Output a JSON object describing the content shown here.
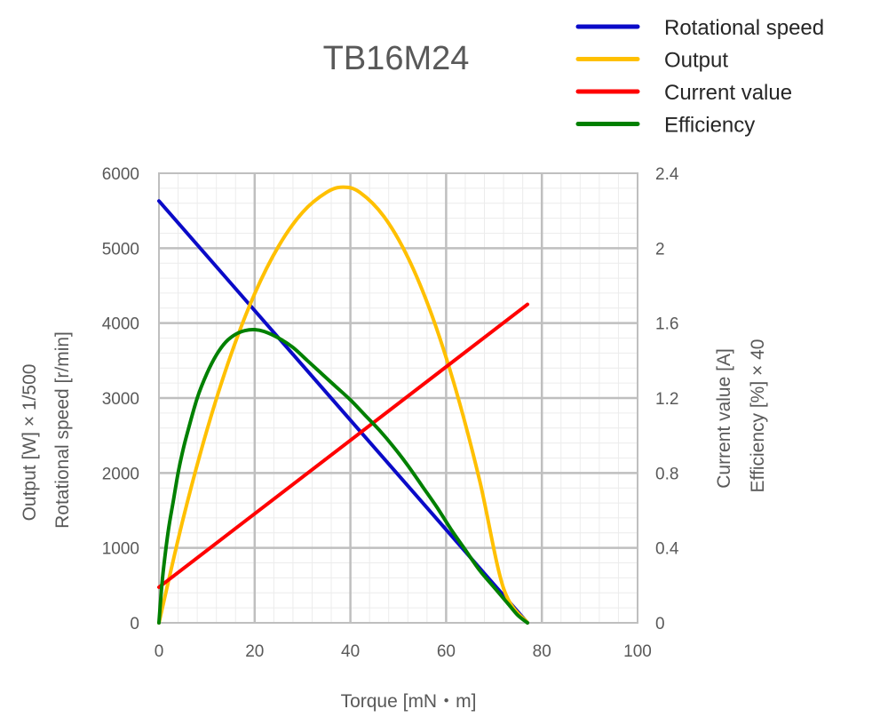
{
  "chart_data": {
    "type": "line",
    "title": "TB16M24",
    "xlabel": "Torque [mN・m]",
    "ylabel_left": [
      "Output  [W] × 1/500",
      "Rotational speed [r/min]"
    ],
    "ylabel_right": [
      "Current value [A]",
      "Efficiency [%] × 40"
    ],
    "xlim": [
      0,
      100
    ],
    "ylim_left": [
      0,
      6000
    ],
    "ylim_right": [
      0,
      2.4
    ],
    "x_ticks": [
      "0",
      "20",
      "40",
      "60",
      "80",
      "100"
    ],
    "y_left_ticks": [
      "0",
      "1000",
      "2000",
      "3000",
      "4000",
      "5000",
      "6000"
    ],
    "y_right_ticks": [
      "0",
      "0.4",
      "0.8",
      "1.2",
      "1.6",
      "2",
      "2.4"
    ],
    "grid": true,
    "legend_position": "top-right",
    "series": [
      {
        "name": "Rotational speed",
        "color": "#0A0AC8",
        "axis": "left",
        "x": [
          0,
          77
        ],
        "y": [
          5630,
          0
        ]
      },
      {
        "name": "Output",
        "color": "#FFC000",
        "axis": "left",
        "x": [
          0,
          5,
          10,
          15,
          20,
          25,
          30,
          35,
          38.5,
          42,
          47,
          52,
          57,
          62,
          67,
          72,
          77
        ],
        "y": [
          0,
          1375,
          2566,
          3571,
          4392,
          5027,
          5478,
          5744,
          5815,
          5744,
          5423,
          4878,
          4109,
          3117,
          1900,
          460,
          0
        ]
      },
      {
        "name": "Current value",
        "color": "#FF0000",
        "axis": "right",
        "x": [
          0,
          77
        ],
        "y": [
          0.19,
          1.7
        ]
      },
      {
        "name": "Efficiency",
        "color": "#008000",
        "axis": "right",
        "x": [
          0,
          0.5,
          1,
          2,
          3,
          4,
          5,
          6,
          8,
          10,
          12,
          14,
          16,
          18,
          20,
          22,
          25,
          28,
          31,
          34,
          37,
          40,
          43,
          46,
          49,
          52,
          55,
          58,
          61,
          64,
          67,
          70,
          73,
          75,
          77
        ],
        "y": [
          0,
          0.17,
          0.3,
          0.5,
          0.65,
          0.8,
          0.92,
          1.02,
          1.2,
          1.33,
          1.43,
          1.5,
          1.54,
          1.56,
          1.565,
          1.555,
          1.52,
          1.47,
          1.4,
          1.33,
          1.26,
          1.19,
          1.11,
          1.03,
          0.94,
          0.84,
          0.73,
          0.62,
          0.5,
          0.39,
          0.28,
          0.19,
          0.1,
          0.04,
          0
        ]
      }
    ]
  }
}
